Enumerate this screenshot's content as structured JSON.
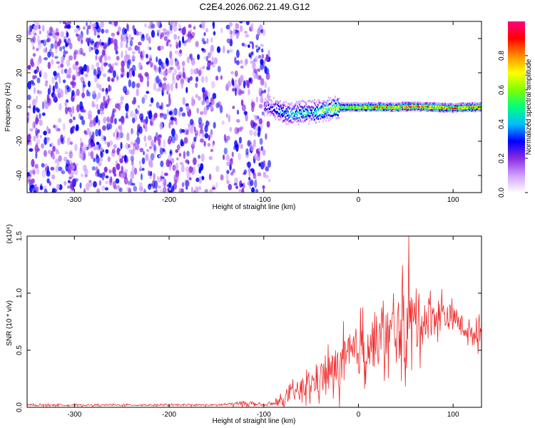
{
  "title": "C2E4.2026.062.21.49.G12",
  "chart_data": [
    {
      "type": "heatmap",
      "xlabel": "Height of straight line (km)",
      "ylabel": "Frequency (Hz)",
      "xlim": [
        -350,
        130
      ],
      "ylim": [
        -50,
        50
      ],
      "xticks": [
        -300,
        -200,
        -100,
        0,
        100
      ],
      "yticks": [
        -40,
        -20,
        0,
        20,
        40
      ],
      "colorbar": {
        "label": "Normalized spectral amplitude",
        "range": [
          0,
          1
        ],
        "ticks": [
          "0.0",
          "0.2",
          "0.4",
          "0.6",
          "0.8"
        ],
        "colors": [
          "#ffffff",
          "#d0a0ff",
          "#8a2be2",
          "#0000ff",
          "#00bfff",
          "#00ff7f",
          "#7fff00",
          "#ffff00",
          "#ff8c00",
          "#ff0000",
          "#ff0080"
        ]
      },
      "noise_region_x": [
        -350,
        -100
      ],
      "signal_track": [
        {
          "x": -100,
          "freq": 0,
          "amp": 0.3
        },
        {
          "x": -90,
          "freq": -1,
          "amp": 0.35
        },
        {
          "x": -80,
          "freq": -3,
          "amp": 0.45
        },
        {
          "x": -70,
          "freq": -4,
          "amp": 0.5
        },
        {
          "x": -60,
          "freq": -3,
          "amp": 0.55
        },
        {
          "x": -50,
          "freq": -3,
          "amp": 0.55
        },
        {
          "x": -40,
          "freq": -2,
          "amp": 0.6
        },
        {
          "x": -30,
          "freq": -1,
          "amp": 0.65
        },
        {
          "x": -20,
          "freq": 0,
          "amp": 0.75
        },
        {
          "x": 0,
          "freq": 0,
          "amp": 0.85
        },
        {
          "x": 20,
          "freq": 0,
          "amp": 0.9
        },
        {
          "x": 40,
          "freq": 0,
          "amp": 0.92
        },
        {
          "x": 60,
          "freq": 0.5,
          "amp": 0.95
        },
        {
          "x": 80,
          "freq": 0,
          "amp": 0.93
        },
        {
          "x": 100,
          "freq": -0.5,
          "amp": 0.9
        },
        {
          "x": 120,
          "freq": 0,
          "amp": 0.92
        },
        {
          "x": 130,
          "freq": 0,
          "amp": 0.92
        }
      ]
    },
    {
      "type": "line",
      "xlabel": "Height of straight line (km)",
      "ylabel": "SNR (10 * v/v)",
      "scale_label": "(x10⁴)",
      "xlim": [
        -350,
        130
      ],
      "ylim": [
        0,
        1.5
      ],
      "xticks": [
        -300,
        -200,
        -100,
        0,
        100
      ],
      "yticks": [
        0.0,
        0.5,
        1.0,
        1.5
      ],
      "ytick_labels": [
        "0.0",
        "0.5",
        "1.0",
        "1.5"
      ],
      "line_color": "#ee2a2a",
      "series": [
        {
          "name": "SNR",
          "x": [
            -350,
            -300,
            -250,
            -200,
            -150,
            -130,
            -120,
            -110,
            -100,
            -90,
            -80,
            -70,
            -60,
            -50,
            -40,
            -30,
            -20,
            -10,
            0,
            10,
            20,
            30,
            40,
            50,
            60,
            70,
            80,
            90,
            100,
            110,
            120,
            130
          ],
          "mean": [
            0.02,
            0.02,
            0.02,
            0.02,
            0.02,
            0.03,
            0.04,
            0.03,
            0.02,
            0.03,
            0.06,
            0.12,
            0.16,
            0.2,
            0.26,
            0.3,
            0.36,
            0.42,
            0.5,
            0.55,
            0.58,
            0.62,
            0.66,
            0.7,
            0.74,
            0.78,
            0.8,
            0.82,
            0.78,
            0.72,
            0.62,
            0.72
          ],
          "spread": [
            0.01,
            0.01,
            0.01,
            0.01,
            0.01,
            0.02,
            0.03,
            0.02,
            0.01,
            0.03,
            0.06,
            0.1,
            0.13,
            0.16,
            0.2,
            0.24,
            0.28,
            0.3,
            0.32,
            0.32,
            0.32,
            0.34,
            0.4,
            0.45,
            0.38,
            0.3,
            0.24,
            0.2,
            0.14,
            0.12,
            0.12,
            0.2
          ],
          "peak": {
            "x": 53,
            "y": 1.5
          }
        }
      ]
    }
  ]
}
